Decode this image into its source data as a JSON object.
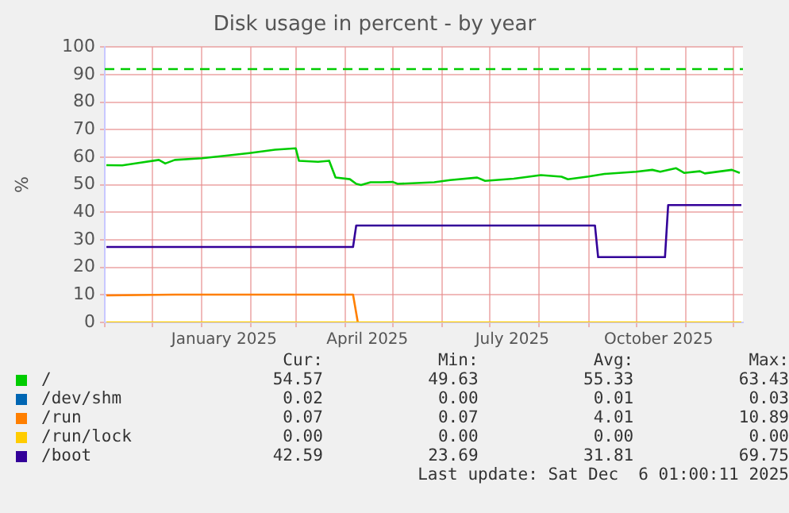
{
  "chart_data": {
    "type": "line",
    "title": "Disk usage in percent - by year",
    "ylabel": "%",
    "xlim": [
      "2024-11-01",
      "2025-12-07"
    ],
    "xticks": [
      {
        "value": "2024-11-01",
        "label": null
      },
      {
        "value": "2024-12-01",
        "label": null
      },
      {
        "value": "2025-01-01",
        "label": null
      },
      {
        "value": "2025-01-15",
        "label": "January 2025"
      },
      {
        "value": "2025-02-01",
        "label": null
      },
      {
        "value": "2025-03-01",
        "label": null
      },
      {
        "value": "2025-04-01",
        "label": null
      },
      {
        "value": "2025-04-15",
        "label": "April 2025"
      },
      {
        "value": "2025-05-01",
        "label": null
      },
      {
        "value": "2025-06-01",
        "label": null
      },
      {
        "value": "2025-07-01",
        "label": null
      },
      {
        "value": "2025-07-15",
        "label": "July 2025"
      },
      {
        "value": "2025-08-01",
        "label": null
      },
      {
        "value": "2025-09-01",
        "label": null
      },
      {
        "value": "2025-10-01",
        "label": null
      },
      {
        "value": "2025-10-15",
        "label": "October 2025"
      },
      {
        "value": "2025-11-01",
        "label": null
      },
      {
        "value": "2025-12-01",
        "label": null
      }
    ],
    "ylim": [
      0,
      100
    ],
    "yticks": [
      0,
      10,
      20,
      30,
      40,
      50,
      60,
      70,
      80,
      90,
      100
    ],
    "grid": true,
    "legend": "bottom",
    "marker": "none",
    "line_style": "solid",
    "series": [
      {
        "name": "/",
        "color": "#00cc00",
        "x": [
          "2024-11-02",
          "2024-11-12",
          "2024-11-22",
          "2024-12-05",
          "2024-12-09",
          "2024-12-15",
          "2025-01-01",
          "2025-01-14",
          "2025-01-31",
          "2025-02-16",
          "2025-03-01",
          "2025-03-03",
          "2025-03-15",
          "2025-03-22",
          "2025-03-26",
          "2025-04-04",
          "2025-04-08",
          "2025-04-11",
          "2025-04-17",
          "2025-04-24",
          "2025-05-01",
          "2025-05-04",
          "2025-05-27",
          "2025-06-06",
          "2025-06-23",
          "2025-06-28",
          "2025-07-16",
          "2025-08-02",
          "2025-08-15",
          "2025-08-19",
          "2025-09-01",
          "2025-09-11",
          "2025-10-01",
          "2025-10-11",
          "2025-10-16",
          "2025-10-26",
          "2025-10-31",
          "2025-11-10",
          "2025-11-13",
          "2025-11-30",
          "2025-12-05"
        ],
        "values": [
          57.1,
          57,
          57.9,
          59,
          57.7,
          59,
          59.6,
          60.4,
          61.5,
          62.7,
          63.2,
          58.7,
          58.3,
          58.7,
          52.6,
          52,
          50.3,
          49.9,
          50.9,
          50.9,
          51,
          50.3,
          50.9,
          51.7,
          52.6,
          51.4,
          52.2,
          53.5,
          52.9,
          52,
          53,
          53.9,
          54.7,
          55.4,
          54.7,
          56,
          54.3,
          54.9,
          54.1,
          55.4,
          54.3
        ]
      },
      {
        "name": "/dev/shm",
        "color": "#0066b3"
      },
      {
        "name": "/run",
        "color": "#ff7f00",
        "x": [
          "2024-11-02",
          "2024-12-15",
          "2025-04-06",
          "2025-04-09"
        ],
        "values": [
          9.8,
          10.1,
          10.1,
          0
        ]
      },
      {
        "name": "/run/lock",
        "color": "#ffcc00",
        "x": [
          "2024-11-02",
          "2025-12-06"
        ],
        "values": [
          0,
          0
        ]
      },
      {
        "name": "/boot",
        "color": "#330099",
        "x": [
          "2024-11-02",
          "2025-04-06",
          "2025-04-08",
          "2025-09-05",
          "2025-09-07",
          "2025-10-19",
          "2025-10-21",
          "2025-12-06"
        ],
        "values": [
          27.4,
          27.4,
          35.2,
          35.2,
          23.7,
          23.7,
          42.6,
          42.6
        ]
      }
    ],
    "ref_lines": [
      {
        "axis": "y",
        "value": 92,
        "color": "#00cc00",
        "line_style": "dashed"
      }
    ],
    "annotations": [
      "Cur:",
      "Min:",
      "Avg:",
      "Max:",
      "54.57",
      "49.63",
      "55.33",
      "63.43",
      "0.02",
      "0.00",
      "0.01",
      "0.03",
      "0.07",
      "0.07",
      "4.01",
      "10.89",
      "0.00",
      "0.00",
      "0.00",
      "0.00",
      "42.59",
      "23.69",
      "31.81",
      "69.75",
      "Last update: Sat Dec  6 01:00:11 2025"
    ]
  }
}
